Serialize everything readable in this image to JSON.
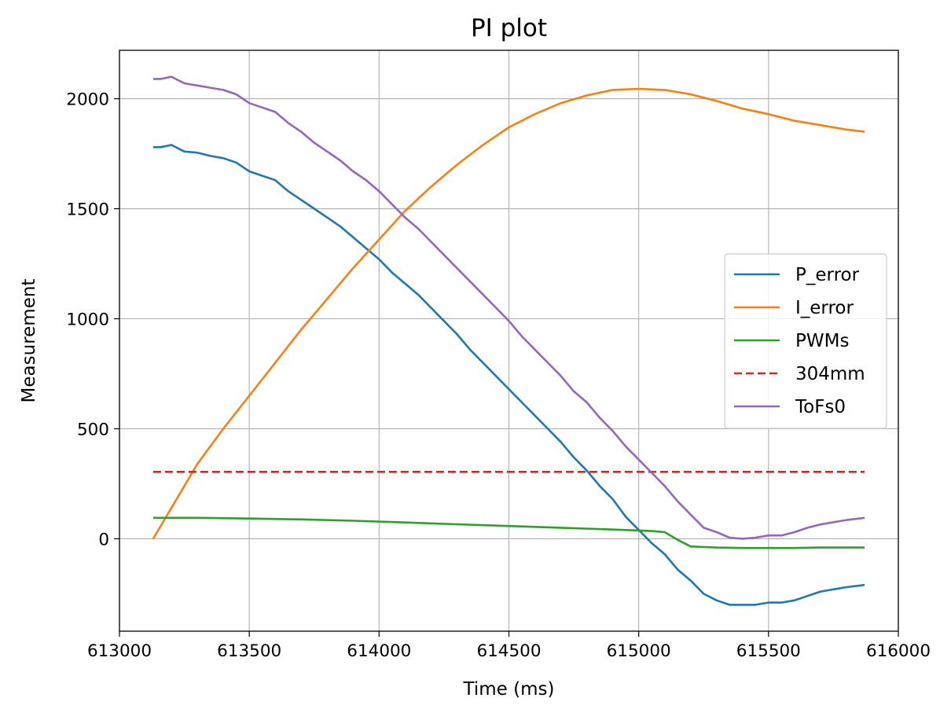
{
  "chart_data": {
    "type": "line",
    "title": "PI plot",
    "xlabel": "Time (ms)",
    "ylabel": "Measurement",
    "xlim": [
      613000,
      616000
    ],
    "ylim": [
      -420,
      2220
    ],
    "xticks": [
      613000,
      613500,
      614000,
      614500,
      615000,
      615500,
      616000
    ],
    "yticks": [
      0,
      500,
      1000,
      1500,
      2000
    ],
    "grid": true,
    "legend_position": "center-right",
    "series": [
      {
        "name": "P_error",
        "color": "#1f77b4",
        "dash": "solid",
        "x": [
          613130,
          613160,
          613200,
          613250,
          613300,
          613350,
          613400,
          613450,
          613500,
          613550,
          613600,
          613650,
          613700,
          613750,
          613800,
          613850,
          613900,
          613950,
          614000,
          614050,
          614100,
          614150,
          614200,
          614250,
          614300,
          614350,
          614400,
          614450,
          614500,
          614550,
          614600,
          614650,
          614700,
          614750,
          614800,
          614850,
          614900,
          614950,
          615000,
          615050,
          615100,
          615150,
          615200,
          615250,
          615300,
          615350,
          615400,
          615450,
          615500,
          615550,
          615600,
          615650,
          615700,
          615750,
          615800,
          615870
        ],
        "y": [
          1780,
          1780,
          1790,
          1760,
          1755,
          1740,
          1730,
          1710,
          1670,
          1650,
          1630,
          1580,
          1540,
          1500,
          1460,
          1420,
          1370,
          1320,
          1270,
          1210,
          1160,
          1110,
          1050,
          990,
          930,
          860,
          800,
          740,
          680,
          620,
          560,
          500,
          440,
          370,
          310,
          240,
          180,
          100,
          40,
          -20,
          -70,
          -140,
          -190,
          -250,
          -280,
          -300,
          -300,
          -300,
          -290,
          -290,
          -280,
          -260,
          -240,
          -230,
          -220,
          -210
        ]
      },
      {
        "name": "I_error",
        "color": "#ff7f0e",
        "dash": "solid",
        "x": [
          613130,
          613200,
          613300,
          613400,
          613500,
          613600,
          613700,
          613800,
          613900,
          614000,
          614100,
          614200,
          614300,
          614400,
          614500,
          614600,
          614700,
          614800,
          614900,
          615000,
          615100,
          615200,
          615300,
          615400,
          615500,
          615600,
          615700,
          615800,
          615870
        ],
        "y": [
          0,
          140,
          340,
          500,
          650,
          800,
          950,
          1090,
          1230,
          1360,
          1490,
          1600,
          1700,
          1790,
          1870,
          1930,
          1980,
          2015,
          2040,
          2045,
          2040,
          2020,
          1990,
          1955,
          1930,
          1900,
          1880,
          1860,
          1850
        ]
      },
      {
        "name": "PWMs",
        "color": "#2ca02c",
        "dash": "solid",
        "x": [
          613130,
          613300,
          613500,
          613700,
          613900,
          614100,
          614300,
          614500,
          614700,
          614900,
          615050,
          615100,
          615150,
          615200,
          615300,
          615400,
          615500,
          615600,
          615700,
          615870
        ],
        "y": [
          95,
          95,
          92,
          88,
          82,
          74,
          66,
          58,
          50,
          42,
          35,
          30,
          -5,
          -35,
          -40,
          -42,
          -42,
          -42,
          -40,
          -40
        ]
      },
      {
        "name": "304mm",
        "color": "#d62728",
        "dash": "dashed",
        "x": [
          613130,
          615870
        ],
        "y": [
          304,
          304
        ]
      },
      {
        "name": "ToFs0",
        "color": "#9467bd",
        "dash": "solid",
        "x": [
          613130,
          613160,
          613200,
          613250,
          613300,
          613350,
          613400,
          613450,
          613500,
          613550,
          613600,
          613650,
          613700,
          613750,
          613800,
          613850,
          613900,
          613950,
          614000,
          614050,
          614100,
          614150,
          614200,
          614250,
          614300,
          614350,
          614400,
          614450,
          614500,
          614550,
          614600,
          614650,
          614700,
          614750,
          614800,
          614850,
          614900,
          614950,
          615000,
          615050,
          615100,
          615150,
          615200,
          615250,
          615300,
          615350,
          615400,
          615450,
          615500,
          615550,
          615600,
          615650,
          615700,
          615750,
          615800,
          615870
        ],
        "y": [
          2090,
          2090,
          2100,
          2070,
          2060,
          2050,
          2040,
          2020,
          1980,
          1960,
          1940,
          1890,
          1850,
          1800,
          1760,
          1720,
          1670,
          1630,
          1580,
          1520,
          1460,
          1410,
          1350,
          1290,
          1230,
          1170,
          1110,
          1050,
          990,
          920,
          860,
          800,
          740,
          670,
          620,
          550,
          490,
          420,
          360,
          300,
          240,
          170,
          110,
          50,
          30,
          5,
          0,
          5,
          15,
          15,
          30,
          50,
          65,
          75,
          85,
          95
        ]
      }
    ]
  }
}
